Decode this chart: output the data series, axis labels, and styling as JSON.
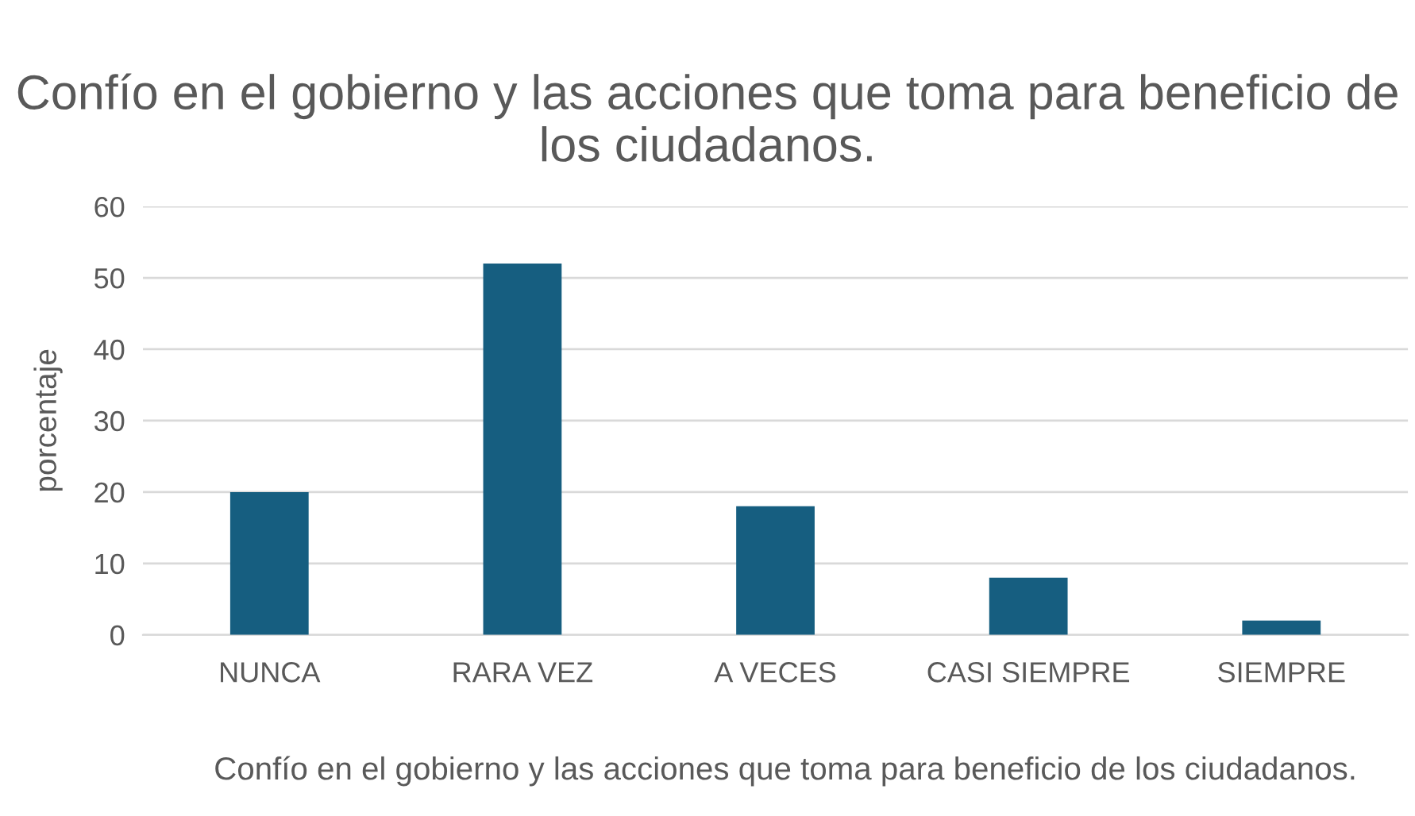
{
  "chart_data": {
    "type": "bar",
    "title": "Confío en el gobierno y las acciones que toma para beneficio de los ciudadanos.",
    "xlabel": "Confío en el gobierno y las acciones que toma para beneficio de los ciudadanos.",
    "ylabel": "porcentaje",
    "categories": [
      "NUNCA",
      "RARA VEZ",
      "A VECES",
      "CASI SIEMPRE",
      "SIEMPRE"
    ],
    "values": [
      20,
      52,
      18,
      8,
      2
    ],
    "color": "#165e80",
    "ylim": [
      0,
      60
    ],
    "yticks": [
      0,
      10,
      20,
      30,
      40,
      50,
      60
    ],
    "grid": "y",
    "legend": false
  }
}
